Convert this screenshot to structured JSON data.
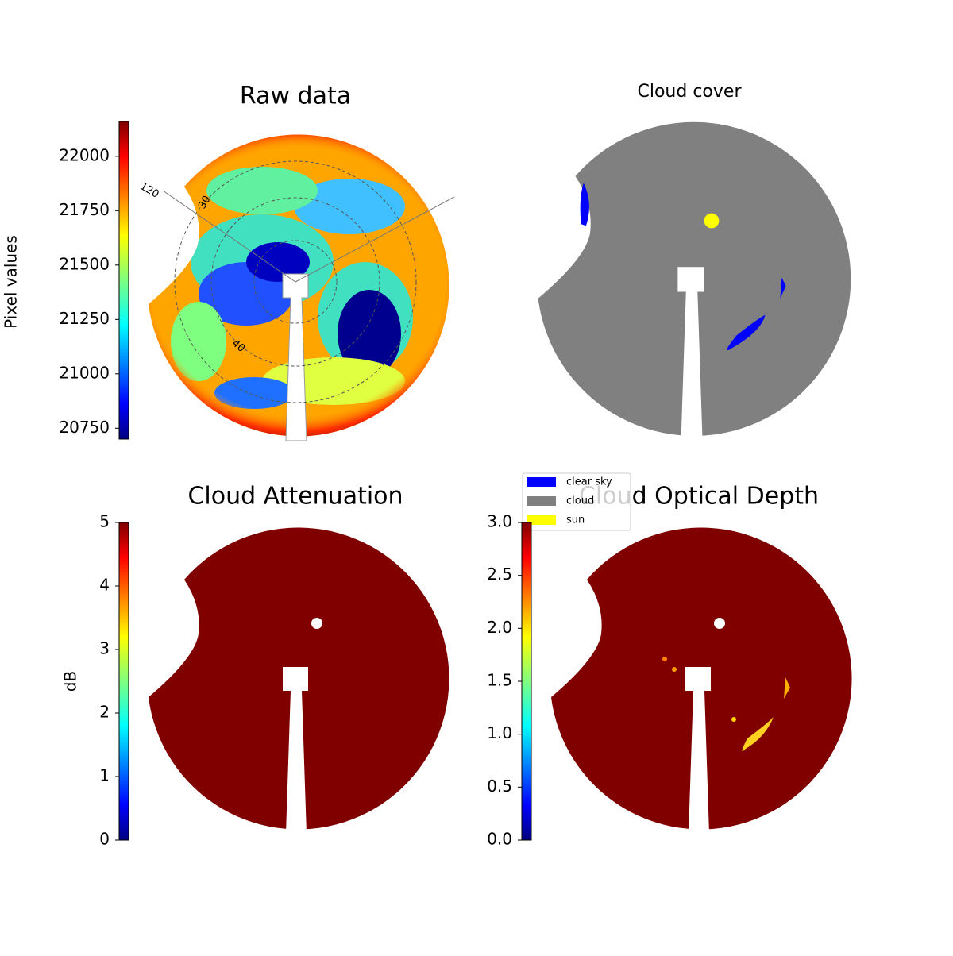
{
  "chart_data": [
    {
      "type": "image",
      "title": "Raw data",
      "colorbar_label": "Pixel values",
      "ylim": [
        20700,
        22160
      ],
      "yticks": [
        20750,
        21000,
        21250,
        21500,
        21750,
        22000
      ],
      "annotations": [
        "120",
        "30",
        "40"
      ]
    },
    {
      "type": "image",
      "title": "Cloud cover",
      "legend": [
        {
          "name": "clear sky",
          "color": "#0000ff"
        },
        {
          "name": "cloud",
          "color": "#808080"
        },
        {
          "name": "sun",
          "color": "#ffff00"
        }
      ]
    },
    {
      "type": "image",
      "title": "Cloud Attenuation",
      "colorbar_label": "dB",
      "ylim": [
        0,
        5
      ],
      "yticks": [
        0,
        1,
        2,
        3,
        4,
        5
      ]
    },
    {
      "type": "image",
      "title": "Cloud Optical Depth",
      "ylim": [
        0,
        3
      ],
      "yticks": [
        {
          "value": 0,
          "label": "0.0"
        },
        0.5,
        {
          "value": 1,
          "label": "1.0"
        },
        1.5,
        {
          "value": 2,
          "label": "2.0"
        },
        2.5,
        {
          "value": 3,
          "label": "3.0"
        }
      ]
    }
  ]
}
